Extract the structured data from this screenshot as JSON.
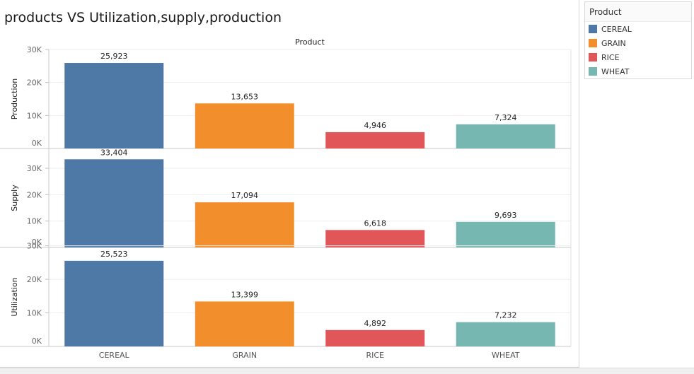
{
  "title": "products VS Utilization,supply,production",
  "legend": {
    "title": "Product",
    "items": [
      {
        "label": "CEREAL",
        "color": "#4e79a7"
      },
      {
        "label": "GRAIN",
        "color": "#f28e2b"
      },
      {
        "label": "RICE",
        "color": "#e15759"
      },
      {
        "label": "WHEAT",
        "color": "#76b7b2"
      }
    ]
  },
  "chart_data": {
    "type": "bar",
    "header": "Product",
    "categories": [
      "CEREAL",
      "GRAIN",
      "RICE",
      "WHEAT"
    ],
    "colors": [
      "#4e79a7",
      "#f28e2b",
      "#e15759",
      "#76b7b2"
    ],
    "grid": true,
    "panels": [
      {
        "name": "Production",
        "values": [
          25923,
          13653,
          4946,
          7324
        ],
        "value_labels": [
          "25,923",
          "13,653",
          "4,946",
          "7,324"
        ],
        "ylim": [
          0,
          30000
        ],
        "ticks": [
          0,
          10000,
          20000,
          30000
        ],
        "tick_labels": [
          "0K",
          "10K",
          "20K",
          "30K"
        ]
      },
      {
        "name": "Supply",
        "values": [
          33404,
          17094,
          6618,
          9693
        ],
        "value_labels": [
          "33,404",
          "17,094",
          "6,618",
          "9,693"
        ],
        "ylim": [
          0,
          37500
        ],
        "ticks": [
          0,
          10000,
          20000,
          30000
        ],
        "tick_labels": [
          "0K",
          "10K",
          "20K",
          "30K"
        ]
      },
      {
        "name": "Utilization",
        "values": [
          25523,
          13399,
          4892,
          7232
        ],
        "value_labels": [
          "25,523",
          "13,399",
          "4,892",
          "7,232"
        ],
        "ylim": [
          0,
          29500
        ],
        "ticks": [
          0,
          10000,
          20000,
          30000
        ],
        "tick_labels": [
          "0K",
          "10K",
          "20K",
          "30K"
        ]
      }
    ]
  }
}
